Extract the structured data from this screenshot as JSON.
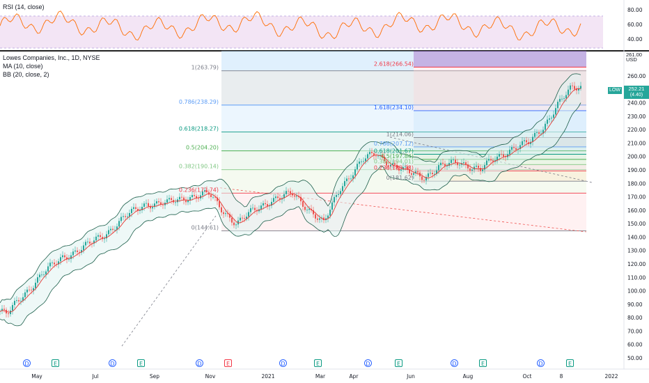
{
  "rsi_panel": {
    "title": "RSI (14, close)",
    "levels": [
      "80.00",
      "60.00",
      "40.00"
    ],
    "level_values": [
      80,
      60,
      40
    ]
  },
  "main_legend": {
    "symbol": "Lowes Companies, Inc., 1D, NYSE",
    "ma": "MA (10, close)",
    "bb": "BB (20, close, 2)"
  },
  "price_axis": {
    "currency": "USD",
    "top_label": "261.00",
    "labels": [
      "260.00",
      "250.00",
      "240.00",
      "230.00",
      "220.00",
      "210.00",
      "200.00",
      "190.00",
      "180.00",
      "170.00",
      "160.00",
      "150.00",
      "140.00",
      "130.00",
      "120.00",
      "110.00",
      "100.00",
      "90.00",
      "80.00",
      "70.00",
      "60.00",
      "50.00"
    ],
    "values": [
      260,
      250,
      240,
      230,
      220,
      210,
      200,
      190,
      180,
      170,
      160,
      150,
      140,
      130,
      120,
      110,
      100,
      90,
      80,
      70,
      60,
      50
    ],
    "current_price": "252.21",
    "current_change": "(4.40)",
    "symbol_tag": "LOW"
  },
  "time_axis": {
    "labels": [
      "May",
      "Jul",
      "Sep",
      "Nov",
      "2021",
      "Mar",
      "Apr",
      "Jun",
      "Aug",
      "Oct",
      "8",
      "2022"
    ]
  },
  "fib_left": {
    "levels": [
      {
        "label": "1(263.79)",
        "price": 263.79,
        "color": "#787b86"
      },
      {
        "label": "0.786(238.29)",
        "price": 238.29,
        "color": "#5b9cf6"
      },
      {
        "label": "0.618(218.27)",
        "price": 218.27,
        "color": "#089981"
      },
      {
        "label": "0.5(204.20)",
        "price": 204.2,
        "color": "#4caf50"
      },
      {
        "label": "0.382(190.14)",
        "price": 190.14,
        "color": "#81c784"
      },
      {
        "label": "0.236(172.74)",
        "price": 172.74,
        "color": "#f23645"
      },
      {
        "label": "0(144.61)",
        "price": 144.61,
        "color": "#787b86"
      }
    ]
  },
  "fib_right": {
    "levels": [
      {
        "label": "2.618(266.54)",
        "price": 266.54,
        "color": "#f23645"
      },
      {
        "label": "1.618(234.10)",
        "price": 234.1,
        "color": "#2962ff"
      },
      {
        "label": "1(214.06)",
        "price": 214.06,
        "color": "#787b86"
      },
      {
        "label": "0.786(207.12)",
        "price": 207.12,
        "color": "#5b9cf6"
      },
      {
        "label": "0.618(201.67)",
        "price": 201.67,
        "color": "#089981"
      },
      {
        "label": "0.5(197.84)",
        "price": 197.84,
        "color": "#4caf50"
      },
      {
        "label": "0.382(194.01)",
        "price": 194.01,
        "color": "#81c784"
      },
      {
        "label": "0.236(189.28)",
        "price": 189.28,
        "color": "#f23645"
      },
      {
        "label": "0(181.62)",
        "price": 181.62,
        "color": "#787b86"
      }
    ]
  },
  "events": [
    {
      "type": "D"
    },
    {
      "type": "E"
    },
    {
      "type": "D"
    },
    {
      "type": "E"
    },
    {
      "type": "D"
    },
    {
      "type": "E",
      "highlight": true
    },
    {
      "type": "D"
    },
    {
      "type": "E"
    },
    {
      "type": "D"
    },
    {
      "type": "E"
    },
    {
      "type": "D"
    },
    {
      "type": "E"
    },
    {
      "type": "D"
    },
    {
      "type": "E"
    }
  ],
  "colors": {
    "up": "#26a69a",
    "down": "#ef5350",
    "ma": "#e53935",
    "bb": "#2e7d6f",
    "rsi": "#ff6d00",
    "rsi_band": "#e1bee7"
  }
}
